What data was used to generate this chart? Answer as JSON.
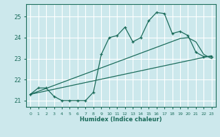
{
  "background_color": "#cce8ec",
  "grid_color": "#ffffff",
  "line_color": "#1a6b5a",
  "xlabel": "Humidex (Indice chaleur)",
  "xlim": [
    -0.5,
    23.5
  ],
  "ylim": [
    20.7,
    25.6
  ],
  "yticks": [
    21,
    22,
    23,
    24,
    25
  ],
  "xticks": [
    0,
    1,
    2,
    3,
    4,
    5,
    6,
    7,
    8,
    9,
    10,
    11,
    12,
    13,
    14,
    15,
    16,
    17,
    18,
    19,
    20,
    21,
    22,
    23
  ],
  "series1_x": [
    0,
    1,
    2,
    3,
    4,
    5,
    6,
    7,
    8,
    9,
    10,
    11,
    12,
    13,
    14,
    15,
    16,
    17,
    18,
    19,
    20,
    21,
    22,
    23
  ],
  "series1_y": [
    21.3,
    21.6,
    21.6,
    21.2,
    21.0,
    21.0,
    21.0,
    21.0,
    21.4,
    23.2,
    24.0,
    24.1,
    24.5,
    23.8,
    24.0,
    24.8,
    25.2,
    25.15,
    24.2,
    24.3,
    24.1,
    23.3,
    23.1,
    23.1
  ],
  "series2_x": [
    0,
    1,
    2,
    3,
    4,
    5,
    6,
    7,
    8,
    9,
    10,
    11,
    12,
    13,
    14,
    15,
    16,
    17,
    18,
    19,
    20,
    21,
    22,
    23
  ],
  "series2_y": [
    21.3,
    21.38,
    21.46,
    21.54,
    21.62,
    21.7,
    21.78,
    21.86,
    21.94,
    22.02,
    22.1,
    22.18,
    22.26,
    22.34,
    22.42,
    22.5,
    22.58,
    22.66,
    22.74,
    22.82,
    22.9,
    22.98,
    23.06,
    23.14
  ],
  "series3_x": [
    0,
    1,
    2,
    3,
    4,
    5,
    6,
    7,
    8,
    9,
    10,
    11,
    12,
    13,
    14,
    15,
    16,
    17,
    18,
    19,
    20,
    21,
    22,
    23
  ],
  "series3_y": [
    21.3,
    21.44,
    21.58,
    21.72,
    21.86,
    22.0,
    22.14,
    22.28,
    22.42,
    22.56,
    22.7,
    22.84,
    22.98,
    23.12,
    23.26,
    23.4,
    23.54,
    23.68,
    23.82,
    23.96,
    24.0,
    23.8,
    23.2,
    23.0
  ]
}
